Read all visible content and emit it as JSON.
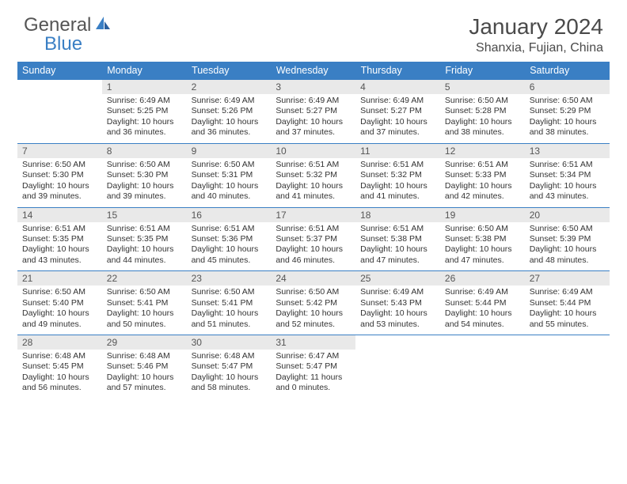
{
  "logo": {
    "text1": "General",
    "text2": "Blue"
  },
  "title": "January 2024",
  "location": "Shanxia, Fujian, China",
  "colors": {
    "header_bg": "#3a7fc4",
    "header_text": "#ffffff",
    "daynum_bg": "#e9e9e9",
    "border": "#3a7fc4",
    "body_text": "#333333",
    "logo_gray": "#555555",
    "logo_blue": "#3a7fc4"
  },
  "weekdays": [
    "Sunday",
    "Monday",
    "Tuesday",
    "Wednesday",
    "Thursday",
    "Friday",
    "Saturday"
  ],
  "weeks": [
    [
      null,
      {
        "n": "1",
        "sunrise": "6:49 AM",
        "sunset": "5:25 PM",
        "daylight": "10 hours and 36 minutes."
      },
      {
        "n": "2",
        "sunrise": "6:49 AM",
        "sunset": "5:26 PM",
        "daylight": "10 hours and 36 minutes."
      },
      {
        "n": "3",
        "sunrise": "6:49 AM",
        "sunset": "5:27 PM",
        "daylight": "10 hours and 37 minutes."
      },
      {
        "n": "4",
        "sunrise": "6:49 AM",
        "sunset": "5:27 PM",
        "daylight": "10 hours and 37 minutes."
      },
      {
        "n": "5",
        "sunrise": "6:50 AM",
        "sunset": "5:28 PM",
        "daylight": "10 hours and 38 minutes."
      },
      {
        "n": "6",
        "sunrise": "6:50 AM",
        "sunset": "5:29 PM",
        "daylight": "10 hours and 38 minutes."
      }
    ],
    [
      {
        "n": "7",
        "sunrise": "6:50 AM",
        "sunset": "5:30 PM",
        "daylight": "10 hours and 39 minutes."
      },
      {
        "n": "8",
        "sunrise": "6:50 AM",
        "sunset": "5:30 PM",
        "daylight": "10 hours and 39 minutes."
      },
      {
        "n": "9",
        "sunrise": "6:50 AM",
        "sunset": "5:31 PM",
        "daylight": "10 hours and 40 minutes."
      },
      {
        "n": "10",
        "sunrise": "6:51 AM",
        "sunset": "5:32 PM",
        "daylight": "10 hours and 41 minutes."
      },
      {
        "n": "11",
        "sunrise": "6:51 AM",
        "sunset": "5:32 PM",
        "daylight": "10 hours and 41 minutes."
      },
      {
        "n": "12",
        "sunrise": "6:51 AM",
        "sunset": "5:33 PM",
        "daylight": "10 hours and 42 minutes."
      },
      {
        "n": "13",
        "sunrise": "6:51 AM",
        "sunset": "5:34 PM",
        "daylight": "10 hours and 43 minutes."
      }
    ],
    [
      {
        "n": "14",
        "sunrise": "6:51 AM",
        "sunset": "5:35 PM",
        "daylight": "10 hours and 43 minutes."
      },
      {
        "n": "15",
        "sunrise": "6:51 AM",
        "sunset": "5:35 PM",
        "daylight": "10 hours and 44 minutes."
      },
      {
        "n": "16",
        "sunrise": "6:51 AM",
        "sunset": "5:36 PM",
        "daylight": "10 hours and 45 minutes."
      },
      {
        "n": "17",
        "sunrise": "6:51 AM",
        "sunset": "5:37 PM",
        "daylight": "10 hours and 46 minutes."
      },
      {
        "n": "18",
        "sunrise": "6:51 AM",
        "sunset": "5:38 PM",
        "daylight": "10 hours and 47 minutes."
      },
      {
        "n": "19",
        "sunrise": "6:50 AM",
        "sunset": "5:38 PM",
        "daylight": "10 hours and 47 minutes."
      },
      {
        "n": "20",
        "sunrise": "6:50 AM",
        "sunset": "5:39 PM",
        "daylight": "10 hours and 48 minutes."
      }
    ],
    [
      {
        "n": "21",
        "sunrise": "6:50 AM",
        "sunset": "5:40 PM",
        "daylight": "10 hours and 49 minutes."
      },
      {
        "n": "22",
        "sunrise": "6:50 AM",
        "sunset": "5:41 PM",
        "daylight": "10 hours and 50 minutes."
      },
      {
        "n": "23",
        "sunrise": "6:50 AM",
        "sunset": "5:41 PM",
        "daylight": "10 hours and 51 minutes."
      },
      {
        "n": "24",
        "sunrise": "6:50 AM",
        "sunset": "5:42 PM",
        "daylight": "10 hours and 52 minutes."
      },
      {
        "n": "25",
        "sunrise": "6:49 AM",
        "sunset": "5:43 PM",
        "daylight": "10 hours and 53 minutes."
      },
      {
        "n": "26",
        "sunrise": "6:49 AM",
        "sunset": "5:44 PM",
        "daylight": "10 hours and 54 minutes."
      },
      {
        "n": "27",
        "sunrise": "6:49 AM",
        "sunset": "5:44 PM",
        "daylight": "10 hours and 55 minutes."
      }
    ],
    [
      {
        "n": "28",
        "sunrise": "6:48 AM",
        "sunset": "5:45 PM",
        "daylight": "10 hours and 56 minutes."
      },
      {
        "n": "29",
        "sunrise": "6:48 AM",
        "sunset": "5:46 PM",
        "daylight": "10 hours and 57 minutes."
      },
      {
        "n": "30",
        "sunrise": "6:48 AM",
        "sunset": "5:47 PM",
        "daylight": "10 hours and 58 minutes."
      },
      {
        "n": "31",
        "sunrise": "6:47 AM",
        "sunset": "5:47 PM",
        "daylight": "11 hours and 0 minutes."
      },
      null,
      null,
      null
    ]
  ]
}
